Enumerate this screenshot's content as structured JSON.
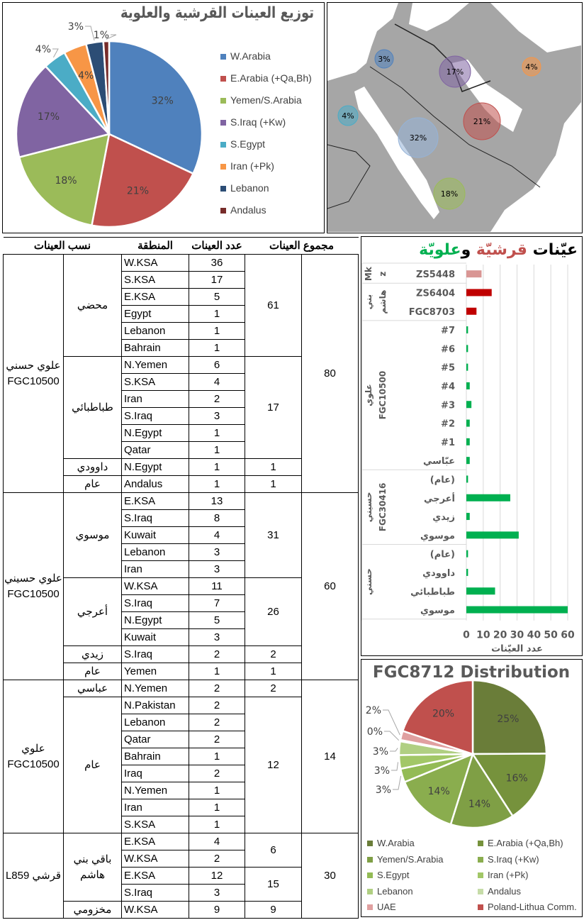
{
  "pie_top": {
    "title": "توزيع العينات القرشية والعلوية",
    "chart_data": {
      "type": "pie",
      "title": "توزيع العينات القرشية والعلوية",
      "categories": [
        "W.Arabia",
        "E.Arabia (+Qa,Bh)",
        "Yemen/S.Arabia",
        "S.Iraq (+Kw)",
        "S.Egypt",
        "Iran (+Pk)",
        "Lebanon",
        "Andalus"
      ],
      "values": [
        32,
        21,
        18,
        17,
        4,
        4,
        3,
        1
      ],
      "labels": [
        "32%",
        "21%",
        "18%",
        "17%",
        "4%",
        "4%",
        "3%",
        "1%"
      ],
      "label_position": [
        "inside",
        "inside",
        "inside",
        "inside",
        "outside",
        "inside",
        "outside",
        "outside"
      ],
      "colors": [
        "#4f81bd",
        "#c0504d",
        "#9bbb59",
        "#8064a2",
        "#4bacc6",
        "#f79646",
        "#2c4d75",
        "#772c2a"
      ],
      "legend": "right"
    }
  },
  "map": {
    "bubbles": [
      {
        "label": "3%",
        "value": 3,
        "color": "#4f81bd"
      },
      {
        "label": "17%",
        "value": 17,
        "color": "#8064a2"
      },
      {
        "label": "4%",
        "value": 4,
        "color": "#f79646"
      },
      {
        "label": "4%",
        "value": 4,
        "color": "#4bacc6"
      },
      {
        "label": "32%",
        "value": 32,
        "color": "#95b3d7"
      },
      {
        "label": "21%",
        "value": 21,
        "color": "#c0504d"
      },
      {
        "label": "18%",
        "value": 18,
        "color": "#9bbb59"
      }
    ]
  },
  "table": {
    "headers": [
      "نسب العينات",
      "المنطقة",
      "عدد العينات",
      "مجموع العينات"
    ],
    "sections": [
      {
        "lineage": "علوي حسني FGC10500",
        "total": "80",
        "groups": [
          {
            "name": "محضي",
            "total": "61",
            "rows": [
              [
                "W.KSA",
                "36"
              ],
              [
                "S.KSA",
                "17"
              ],
              [
                "E.KSA",
                "5"
              ],
              [
                "Egypt",
                "1"
              ],
              [
                "Lebanon",
                "1"
              ],
              [
                "Bahrain",
                "1"
              ]
            ]
          },
          {
            "name": "طباطبائي",
            "total": "17",
            "rows": [
              [
                "N.Yemen",
                "6"
              ],
              [
                "S.KSA",
                "4"
              ],
              [
                "Iran",
                "2"
              ],
              [
                "S.Iraq",
                "3"
              ],
              [
                "N.Egypt",
                "1"
              ],
              [
                "Qatar",
                "1"
              ]
            ]
          },
          {
            "name": "داوودي",
            "total": "1",
            "rows": [
              [
                "N.Egypt",
                "1"
              ]
            ]
          },
          {
            "name": "عام",
            "total": "1",
            "rows": [
              [
                "Andalus",
                "1"
              ]
            ]
          }
        ]
      },
      {
        "lineage": "علوي حسيني FGC10500",
        "total": "60",
        "groups": [
          {
            "name": "موسوي",
            "total": "31",
            "rows": [
              [
                "E.KSA",
                "13"
              ],
              [
                "S.Iraq",
                "8"
              ],
              [
                "Kuwait",
                "4"
              ],
              [
                "Lebanon",
                "3"
              ],
              [
                "Iran",
                "3"
              ]
            ]
          },
          {
            "name": "أعرجي",
            "total": "26",
            "rows": [
              [
                "W.KSA",
                "11"
              ],
              [
                "S.Iraq",
                "7"
              ],
              [
                "N.Egypt",
                "5"
              ],
              [
                "Kuwait",
                "3"
              ]
            ]
          },
          {
            "name": "زيدي",
            "total": "2",
            "rows": [
              [
                "S.Iraq",
                "2"
              ]
            ]
          },
          {
            "name": "عام",
            "total": "1",
            "rows": [
              [
                "Yemen",
                "1"
              ]
            ]
          }
        ]
      },
      {
        "lineage": "علوي FGC10500",
        "total": "14",
        "groups": [
          {
            "name": "عباسي",
            "total": "2",
            "rows": [
              [
                "N.Yemen",
                "2"
              ]
            ]
          },
          {
            "name": "عام",
            "total": "12",
            "rows": [
              [
                "N.Pakistan",
                "2"
              ],
              [
                "Lebanon",
                "2"
              ],
              [
                "Qatar",
                "2"
              ],
              [
                "Bahrain",
                "1"
              ],
              [
                "Iraq",
                "2"
              ],
              [
                "N.Yemen",
                "1"
              ],
              [
                "Iran",
                "1"
              ],
              [
                "S.KSA",
                "1"
              ]
            ]
          }
        ]
      },
      {
        "lineage": "قرشي L859",
        "total": "30",
        "groups": [
          {
            "name": "باقي بني هاشم",
            "total": "6",
            "rows": [
              [
                "E.KSA",
                "4"
              ],
              [
                "W.KSA",
                "2"
              ]
            ],
            "span_name_rows": 4
          },
          {
            "name": "",
            "total": "15",
            "rows": [
              [
                "E.KSA",
                "12"
              ],
              [
                "S.Iraq",
                "3"
              ]
            ],
            "merged_name": true
          },
          {
            "name": "مخزومي",
            "total": "9",
            "rows": [
              [
                "W.KSA",
                "9"
              ]
            ]
          }
        ]
      }
    ]
  },
  "bar": {
    "title_parts": [
      {
        "text": "عيّنات ",
        "color": "#000000"
      },
      {
        "text": "قرشيّة",
        "color": "#c0504d"
      },
      {
        "text": " و",
        "color": "#000000"
      },
      {
        "text": "علويّة",
        "color": "#00b050"
      }
    ],
    "chart_data": {
      "type": "bar",
      "orientation": "horizontal",
      "categories": [
        "ZS5448",
        "ZS6404",
        "FGC8703",
        "#7",
        "#6",
        "#5",
        "#4",
        "#3",
        "#2",
        "#1",
        "عبّاسي",
        "(عام)",
        "أعرجي",
        "زيدي",
        "موسوي",
        "(عام)",
        "داوودي",
        "طباطبائي",
        "موسوي"
      ],
      "values": [
        9,
        15,
        6,
        1,
        1,
        1,
        2,
        3,
        2,
        2,
        2,
        1,
        26,
        2,
        31,
        1,
        1,
        17,
        60
      ],
      "colors": [
        "#d99694",
        "#c00000",
        "#c00000",
        "#00b050",
        "#00b050",
        "#00b050",
        "#00b050",
        "#00b050",
        "#00b050",
        "#00b050",
        "#00b050",
        "#00b050",
        "#00b050",
        "#00b050",
        "#00b050",
        "#00b050",
        "#00b050",
        "#00b050",
        "#00b050"
      ],
      "groups": [
        {
          "label": [
            "Mk",
            "z"
          ],
          "count": 1
        },
        {
          "label": [
            "بني",
            "هاشم"
          ],
          "count": 2
        },
        {
          "label": [
            "علوي",
            "FGC10500"
          ],
          "count": 8
        },
        {
          "label": [
            "حسيني",
            "FGC30416"
          ],
          "count": 4
        },
        {
          "label": [
            "حسني"
          ],
          "count": 4
        }
      ],
      "xticks": [
        "0",
        "10",
        "20",
        "30",
        "40",
        "50",
        "60"
      ],
      "xlim": [
        0,
        60
      ],
      "xlabel": "عدد العيّنات",
      "grid": true
    }
  },
  "pie_bottom": {
    "title": "FGC8712 Distribution",
    "chart_data": {
      "type": "pie",
      "title": "FGC8712 Distribution",
      "categories": [
        "W.Arabia",
        "E.Arabia (+Qa,Bh)",
        "Yemen/S.Arabia",
        "S.Iraq (+Kw)",
        "S.Egypt",
        "Iran (+Pk)",
        "Lebanon",
        "Andalus",
        "UAE",
        "Poland-Lithua Comm."
      ],
      "values": [
        25,
        16,
        14,
        14,
        3,
        3,
        3,
        0.3,
        2,
        20
      ],
      "labels": [
        "25%",
        "16%",
        "14%",
        "14%",
        "3%",
        "3%",
        "3%",
        "0%",
        "2%",
        "20%"
      ],
      "label_position": [
        "inside",
        "inside",
        "inside",
        "inside",
        "outside",
        "outside",
        "outside",
        "outside",
        "outside",
        "inside"
      ],
      "colors": [
        "#6a7d39",
        "#76923c",
        "#7f9f45",
        "#8aad4e",
        "#93bb55",
        "#a2c767",
        "#b0cf82",
        "#c6dca8",
        "#e0a0a0",
        "#c0504d"
      ],
      "legend": "bottom"
    }
  }
}
